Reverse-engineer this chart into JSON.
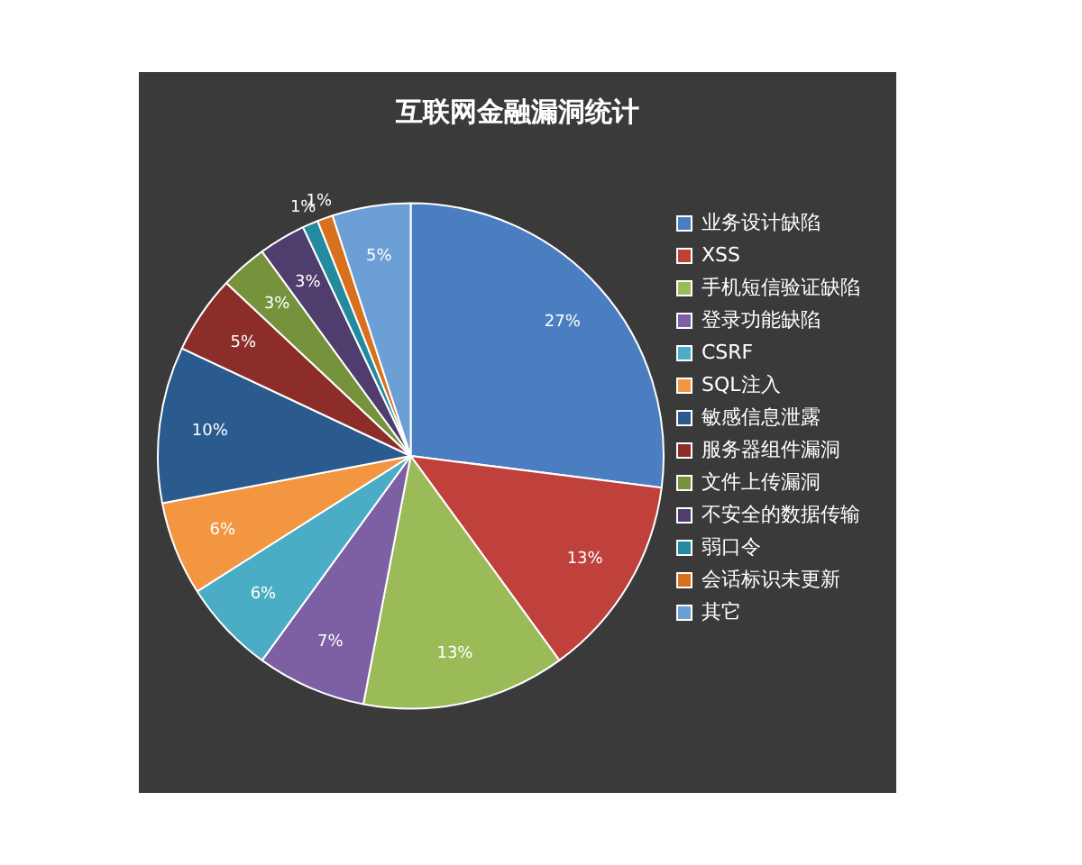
{
  "chart_data": {
    "type": "pie",
    "title": "互联网金融漏洞统计",
    "categories": [
      "业务设计缺陷",
      "XSS",
      "手机短信验证缺陷",
      "登录功能缺陷",
      "CSRF",
      "SQL注入",
      "敏感信息泄露",
      "服务器组件漏洞",
      "文件上传漏洞",
      "不安全的数据传输",
      "弱口令",
      "会话标识未更新",
      "其它"
    ],
    "values": [
      27,
      13,
      13,
      7,
      6,
      6,
      10,
      5,
      3,
      3,
      1,
      1,
      5
    ],
    "value_labels": [
      "27%",
      "13%",
      "13%",
      "7%",
      "6%",
      "6%",
      "10%",
      "5%",
      "3%",
      "3%",
      "1%",
      "1%",
      "5%"
    ],
    "colors": [
      "#4a7ec0",
      "#c0403c",
      "#9bbb59",
      "#7d5fa3",
      "#4bacc6",
      "#f39642",
      "#2a5a8e",
      "#8c2d2a",
      "#76923c",
      "#4f3d6e",
      "#238aa0",
      "#d9701e",
      "#6c9fd6"
    ],
    "legend": "right"
  }
}
